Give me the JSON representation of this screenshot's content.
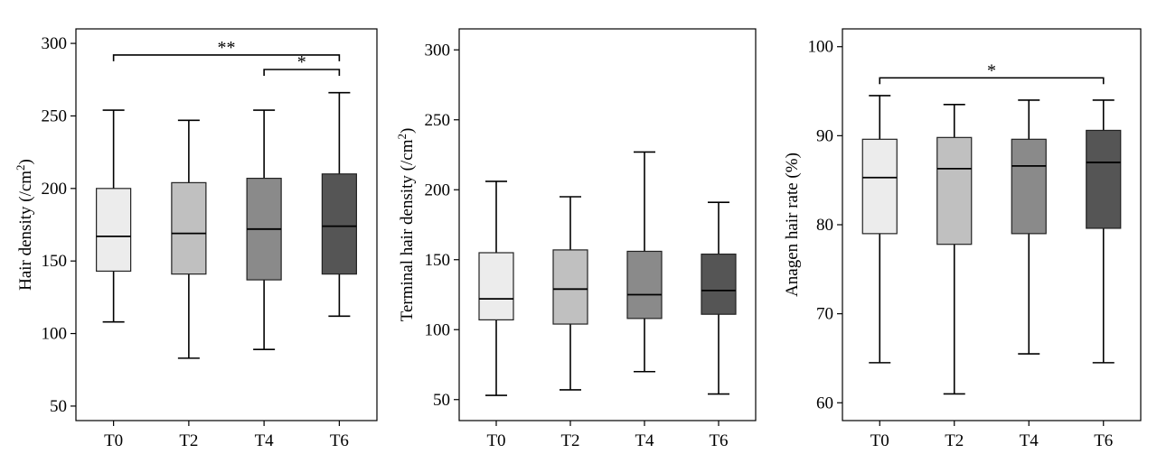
{
  "chart_data": [
    {
      "type": "box",
      "ylabel": "Hair density (/cm²)",
      "ylabel_main": "Hair density (/cm",
      "ylabel_sup": "2",
      "ylabel_end": ")",
      "categories": [
        "T0",
        "T2",
        "T4",
        "T6"
      ],
      "ylim": [
        40,
        310
      ],
      "yticks": [
        50,
        100,
        150,
        200,
        250,
        300
      ],
      "boxes": [
        {
          "min": 108,
          "q1": 143,
          "median": 167,
          "q3": 200,
          "max": 254,
          "fill": "#ececec"
        },
        {
          "min": 83,
          "q1": 141,
          "median": 169,
          "q3": 204,
          "max": 247,
          "fill": "#c0c0c0"
        },
        {
          "min": 89,
          "q1": 137,
          "median": 172,
          "q3": 207,
          "max": 254,
          "fill": "#8a8a8a"
        },
        {
          "min": 112,
          "q1": 141,
          "median": 174,
          "q3": 210,
          "max": 266,
          "fill": "#555555"
        }
      ],
      "significance": [
        {
          "from": 0,
          "to": 3,
          "y": 292,
          "label": "**"
        },
        {
          "from": 2,
          "to": 3,
          "y": 282,
          "label": "*"
        }
      ]
    },
    {
      "type": "box",
      "ylabel": "Terminal hair density (/cm²)",
      "ylabel_main": "Terminal hair density (/cm",
      "ylabel_sup": "2",
      "ylabel_end": ")",
      "categories": [
        "T0",
        "T2",
        "T4",
        "T6"
      ],
      "ylim": [
        35,
        315
      ],
      "yticks": [
        50,
        100,
        150,
        200,
        250,
        300
      ],
      "boxes": [
        {
          "min": 53,
          "q1": 107,
          "median": 122,
          "q3": 155,
          "max": 206,
          "fill": "#ececec"
        },
        {
          "min": 57,
          "q1": 104,
          "median": 129,
          "q3": 157,
          "max": 195,
          "fill": "#c0c0c0"
        },
        {
          "min": 70,
          "q1": 108,
          "median": 125,
          "q3": 156,
          "max": 227,
          "fill": "#8a8a8a"
        },
        {
          "min": 54,
          "q1": 111,
          "median": 128,
          "q3": 154,
          "max": 191,
          "fill": "#555555"
        }
      ],
      "significance": []
    },
    {
      "type": "box",
      "ylabel": "Anagen hair rate (%)",
      "ylabel_main": "Anagen hair rate (%)",
      "ylabel_sup": "",
      "ylabel_end": "",
      "categories": [
        "T0",
        "T2",
        "T4",
        "T6"
      ],
      "ylim": [
        58,
        102
      ],
      "yticks": [
        60,
        70,
        80,
        90,
        100
      ],
      "boxes": [
        {
          "min": 64.5,
          "q1": 79,
          "median": 85.3,
          "q3": 89.6,
          "max": 94.5,
          "fill": "#ececec"
        },
        {
          "min": 61,
          "q1": 77.8,
          "median": 86.3,
          "q3": 89.8,
          "max": 93.5,
          "fill": "#c0c0c0"
        },
        {
          "min": 65.5,
          "q1": 79,
          "median": 86.6,
          "q3": 89.6,
          "max": 94,
          "fill": "#8a8a8a"
        },
        {
          "min": 64.5,
          "q1": 79.6,
          "median": 87,
          "q3": 90.6,
          "max": 94,
          "fill": "#555555"
        }
      ],
      "significance": [
        {
          "from": 0,
          "to": 3,
          "y": 96.5,
          "label": "*"
        }
      ]
    }
  ]
}
